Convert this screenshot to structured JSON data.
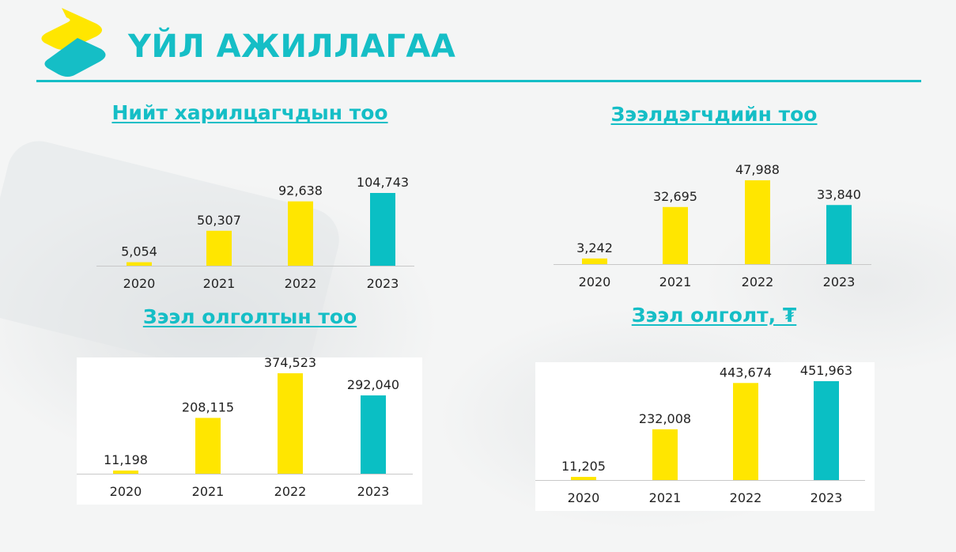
{
  "header": {
    "title": "ҮЙЛ АЖИЛЛАГАА"
  },
  "colors": {
    "accent": "#15BEC6",
    "yellow": "#FFE600",
    "teal": "#0ABFC4"
  },
  "chart_data": [
    {
      "type": "bar",
      "title": "Нийт харилцагчдын тоо",
      "categories": [
        "2020",
        "2021",
        "2022",
        "2023"
      ],
      "values": [
        5054,
        50307,
        92638,
        104743
      ],
      "labels": [
        "5,054",
        "50,307",
        "92,638",
        "104,743"
      ],
      "bar_colors": [
        "yellow",
        "yellow",
        "yellow",
        "teal"
      ],
      "grid": false
    },
    {
      "type": "bar",
      "title": "Зээлдэгчдийн тоо",
      "categories": [
        "2020",
        "2021",
        "2022",
        "2023"
      ],
      "values": [
        3242,
        32695,
        47988,
        33840
      ],
      "labels": [
        "3,242",
        "32,695",
        "47,988",
        "33,840"
      ],
      "bar_colors": [
        "yellow",
        "yellow",
        "yellow",
        "teal"
      ],
      "grid": false
    },
    {
      "type": "bar",
      "title": "Зээл олголтын тоо",
      "categories": [
        "2020",
        "2021",
        "2022",
        "2023"
      ],
      "values": [
        11198,
        208115,
        374523,
        292040
      ],
      "labels": [
        "11,198",
        "208,115",
        "374,523",
        "292,040"
      ],
      "bar_colors": [
        "yellow",
        "yellow",
        "yellow",
        "teal"
      ],
      "grid": false
    },
    {
      "type": "bar",
      "title": "Зээл олголт, ₮",
      "categories": [
        "2020",
        "2021",
        "2022",
        "2023"
      ],
      "values": [
        11205,
        232008,
        443674,
        451963
      ],
      "labels": [
        "11,205",
        "232,008",
        "443,674",
        "451,963"
      ],
      "bar_colors": [
        "yellow",
        "yellow",
        "yellow",
        "teal"
      ],
      "grid": false
    }
  ]
}
